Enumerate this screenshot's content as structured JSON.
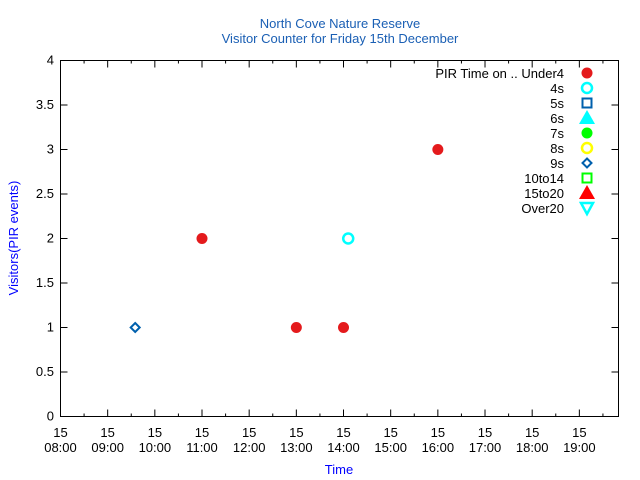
{
  "chart_data": {
    "type": "scatter",
    "title": "North Cove Nature Reserve",
    "subtitle": "Visitor Counter for Friday 15th December",
    "xlabel": "Time",
    "ylabel": "Visitors(PIR events)",
    "xlim_hours": [
      8,
      19.83
    ],
    "ylim": [
      0,
      4
    ],
    "y_ticks": [
      "0",
      "0.5",
      "1",
      "1.5",
      "2",
      "2.5",
      "3",
      "3.5",
      "4"
    ],
    "x_ticks": [
      {
        "day": "15",
        "time": "08:00"
      },
      {
        "day": "15",
        "time": "09:00"
      },
      {
        "day": "15",
        "time": "10:00"
      },
      {
        "day": "15",
        "time": "11:00"
      },
      {
        "day": "15",
        "time": "12:00"
      },
      {
        "day": "15",
        "time": "13:00"
      },
      {
        "day": "15",
        "time": "14:00"
      },
      {
        "day": "15",
        "time": "15:00"
      },
      {
        "day": "15",
        "time": "16:00"
      },
      {
        "day": "15",
        "time": "17:00"
      },
      {
        "day": "15",
        "time": "18:00"
      },
      {
        "day": "15",
        "time": "19:00"
      }
    ],
    "legend_title": "PIR Time on .. ",
    "legend_position": "top-right",
    "series": [
      {
        "name": "Under4",
        "color": "#e41a1c",
        "marker": "filled-circle",
        "points": [
          {
            "x": "11:00",
            "y": 2
          },
          {
            "x": "13:00",
            "y": 1
          },
          {
            "x": "14:00",
            "y": 1
          },
          {
            "x": "16:00",
            "y": 3
          }
        ]
      },
      {
        "name": "4s",
        "color": "#00ffff",
        "marker": "open-circle",
        "points": [
          {
            "x": "14:06",
            "y": 2
          }
        ]
      },
      {
        "name": "5s",
        "color": "#0060ad",
        "marker": "open-square",
        "points": []
      },
      {
        "name": "6s",
        "color": "#00ffff",
        "marker": "filled-triangle-up",
        "points": []
      },
      {
        "name": "7s",
        "color": "#00ff00",
        "marker": "filled-circle",
        "points": []
      },
      {
        "name": "8s",
        "color": "#ffff00",
        "marker": "open-circle",
        "points": []
      },
      {
        "name": "9s",
        "color": "#0060ad",
        "marker": "open-diamond",
        "points": [
          {
            "x": "09:35",
            "y": 1
          }
        ]
      },
      {
        "name": "10to14",
        "color": "#00ff00",
        "marker": "open-square",
        "points": []
      },
      {
        "name": "15to20",
        "color": "#ff0000",
        "marker": "filled-triangle-up",
        "points": []
      },
      {
        "name": "Over20",
        "color": "#00ffff",
        "marker": "open-triangle-down",
        "points": []
      }
    ]
  }
}
